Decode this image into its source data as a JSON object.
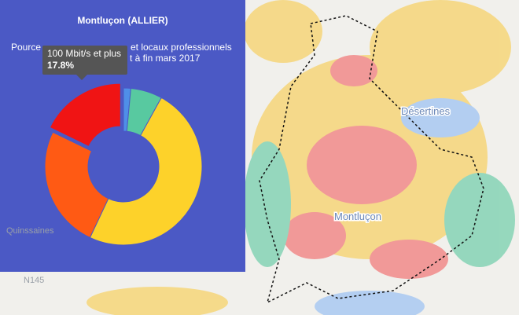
{
  "map": {
    "labels": [
      "Désertines",
      "Montluçon",
      "Quinssaines",
      "N145"
    ]
  },
  "chart_data": {
    "type": "pie",
    "title": "Montluçon (ALLIER)",
    "subtitle_fragments": [
      "Pource",
      "et locaux professionnels",
      "t à fin mars 2017"
    ],
    "categories": [
      null,
      null,
      null,
      null,
      "100 Mbit/s et plus"
    ],
    "values": [
      1.5,
      6.5,
      49,
      25.2,
      17.8
    ],
    "value_labels": [
      null,
      null,
      null,
      null,
      "17.8%"
    ],
    "colors": [
      "#4f8fe8",
      "#58c9a0",
      "#fdd22a",
      "#ff5a14",
      "#f01414"
    ],
    "donut": true,
    "highlight": 4
  }
}
